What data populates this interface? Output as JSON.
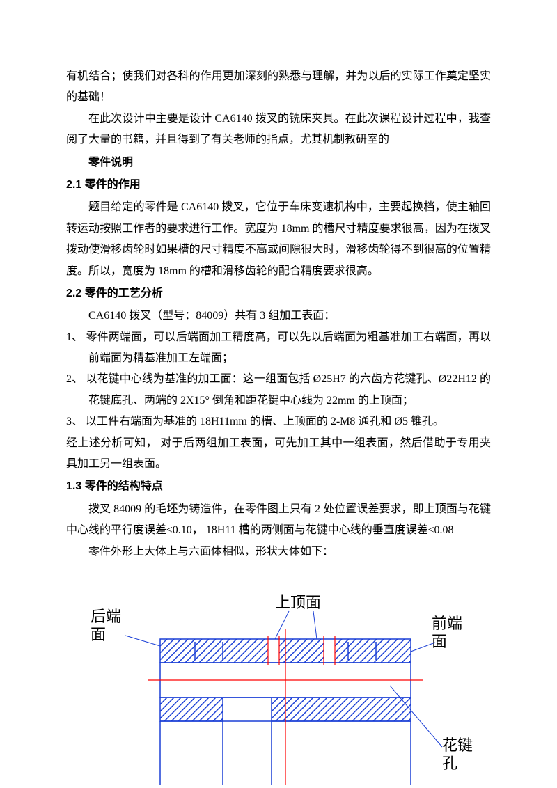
{
  "p1": "有机结合；使我们对各科的作用更加深刻的熟悉与理解，并为以后的实际工作奠定坚实的基础！",
  "p2": "在此次设计中主要是设计 CA6140 拨叉的铣床夹具。在此次课程设计过程中，我查阅了大量的书籍，并且得到了有关老师的指点，尤其机制教研室的",
  "sec1": "零件说明",
  "h21": "2.1  零件的作用",
  "p3": "题目给定的零件是 CA6140 拨叉，它位于车床变速机构中，主要起换档，使主轴回转运动按照工作者的要求进行工作。宽度为 18mm 的槽尺寸精度要求很高，因为在拨叉拨动使滑移齿轮时如果槽的尺寸精度不高或间隙很大时，滑移齿轮得不到很高的位置精度。所以，宽度为 18mm 的槽和滑移齿轮的配合精度要求很高。",
  "h22": "2.2  零件的工艺分析",
  "p4": "CA6140 拨叉（型号：84009）共有 3 组加工表面：",
  "li1": "1、 零件两端面，可以后端面加工精度高，可以先以后端面为粗基准加工右端面，再以前端面为精基准加工左端面；",
  "li2": "2、 以花键中心线为基准的加工面：这一组面包括 Ø25H7 的六齿方花键孔、Ø22H12 的花键底孔、两端的 2X15° 倒角和距花键中心线为 22mm 的上顶面；",
  "li3": "3、 以工件右端面为基准的 18H11mm 的槽、上顶面的 2-M8 通孔和 Ø5 锥孔。",
  "p5": "经上述分析可知，   对于后两组加工表面，可先加工其中一组表面，然后借助于专用夹具加工另一组表面。",
  "h13": "1.3  零件的结构特点",
  "p6": "拨叉 84009 的毛坯为铸造件，在零件图上只有 2 处位置误差要求，即上顶面与花键中心线的平行度误差≤0.10，  18H11 槽的两侧面与花键中心线的垂直度误差≤0.08",
  "p7": "零件外形上大体上与六面体相似，形状大体如下：",
  "figure": {
    "labels": {
      "top": "上顶面",
      "left": "后端\n面",
      "right_top": "前端\n面",
      "right_bottom": "花键\n孔"
    },
    "colors": {
      "outline": "#1a3fd6",
      "hatch": "#1a3fd6",
      "centerline": "#ff0000",
      "label_line": "#1a3fd6",
      "text": "#000000"
    },
    "stroke_width": 1.5,
    "label_fontsize": 22,
    "label_font": "SimSun, 宋体, serif"
  }
}
